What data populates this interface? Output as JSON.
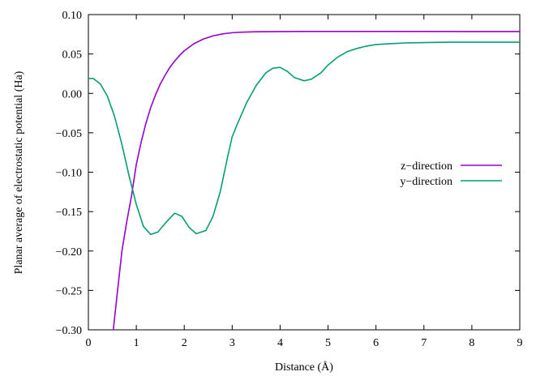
{
  "chart_data": {
    "type": "line",
    "title": "",
    "xlabel": "Distance (Å)",
    "ylabel": "Planar average of electrostatic potential (Ha)",
    "xlim": [
      0,
      9
    ],
    "ylim": [
      -0.3,
      0.1
    ],
    "xticks": [
      0,
      1,
      2,
      3,
      4,
      5,
      6,
      7,
      8,
      9
    ],
    "xtick_labels": [
      "0",
      "1",
      "2",
      "3",
      "4",
      "5",
      "6",
      "7",
      "8",
      "9"
    ],
    "yticks": [
      -0.3,
      -0.25,
      -0.2,
      -0.15,
      -0.1,
      -0.05,
      0.0,
      0.05,
      0.1
    ],
    "ytick_labels": [
      "−0.30",
      "−0.25",
      "−0.20",
      "−0.15",
      "−0.10",
      "−0.05",
      "0.00",
      "0.05",
      "0.10"
    ],
    "grid": false,
    "legend_position": "right",
    "series": [
      {
        "name": "z−direction",
        "color": "#9400d3",
        "x": [
          0.52,
          0.6,
          0.7,
          0.8,
          0.9,
          1.0,
          1.1,
          1.2,
          1.3,
          1.4,
          1.5,
          1.6,
          1.7,
          1.8,
          1.9,
          2.0,
          2.2,
          2.4,
          2.6,
          2.8,
          3.0,
          3.2,
          3.5,
          4.0,
          4.5,
          5.0,
          6.0,
          7.0,
          8.0,
          9.0
        ],
        "y": [
          -0.3,
          -0.255,
          -0.2,
          -0.163,
          -0.13,
          -0.09,
          -0.062,
          -0.038,
          -0.018,
          -0.002,
          0.012,
          0.023,
          0.033,
          0.041,
          0.048,
          0.054,
          0.063,
          0.069,
          0.073,
          0.0755,
          0.077,
          0.0777,
          0.0782,
          0.0785,
          0.0786,
          0.0786,
          0.0786,
          0.0786,
          0.0785,
          0.0785
        ]
      },
      {
        "name": "y−direction",
        "color": "#009e73",
        "x": [
          0.0,
          0.1,
          0.25,
          0.4,
          0.55,
          0.7,
          0.85,
          1.0,
          1.15,
          1.3,
          1.45,
          1.6,
          1.8,
          1.95,
          2.1,
          2.25,
          2.45,
          2.6,
          2.75,
          2.9,
          3.0,
          3.1,
          3.3,
          3.5,
          3.7,
          3.85,
          4.0,
          4.15,
          4.3,
          4.5,
          4.65,
          4.85,
          5.0,
          5.2,
          5.4,
          5.6,
          5.8,
          6.0,
          6.3,
          6.6,
          7.0,
          7.5,
          8.0,
          9.0
        ],
        "y": [
          0.019,
          0.019,
          0.012,
          -0.004,
          -0.03,
          -0.065,
          -0.105,
          -0.141,
          -0.169,
          -0.179,
          -0.176,
          -0.165,
          -0.152,
          -0.156,
          -0.17,
          -0.178,
          -0.174,
          -0.156,
          -0.125,
          -0.082,
          -0.055,
          -0.04,
          -0.012,
          0.01,
          0.026,
          0.032,
          0.033,
          0.028,
          0.02,
          0.016,
          0.018,
          0.026,
          0.036,
          0.046,
          0.053,
          0.057,
          0.06,
          0.062,
          0.063,
          0.064,
          0.0645,
          0.065,
          0.065,
          0.065
        ]
      }
    ]
  }
}
